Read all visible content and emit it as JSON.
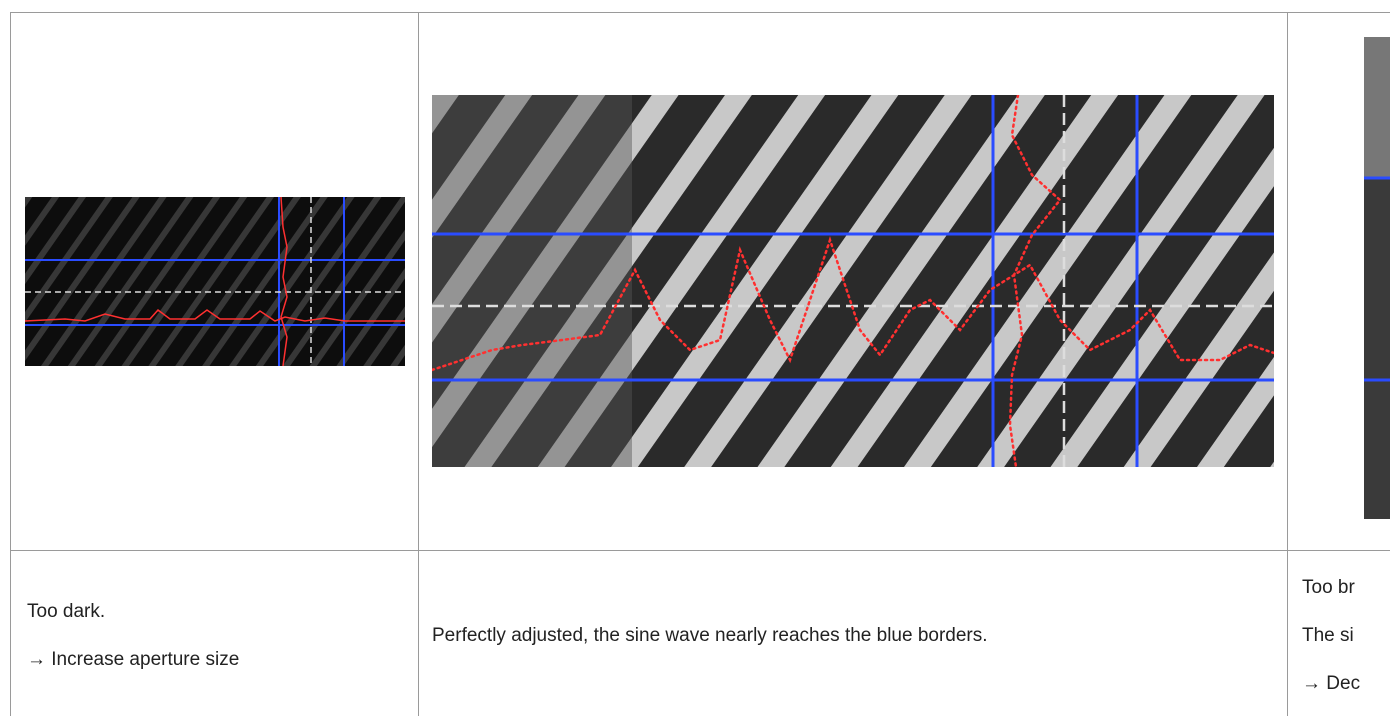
{
  "table": {
    "text_row": [
      {
        "lines": [
          "Too dark.",
          "→ Increase aperture size"
        ]
      },
      {
        "lines": [
          "Perfectly adjusted, the sine wave nearly reaches the blue borders."
        ]
      },
      {
        "lines": [
          "Too br",
          "The si",
          "→ Dec"
        ]
      }
    ]
  }
}
